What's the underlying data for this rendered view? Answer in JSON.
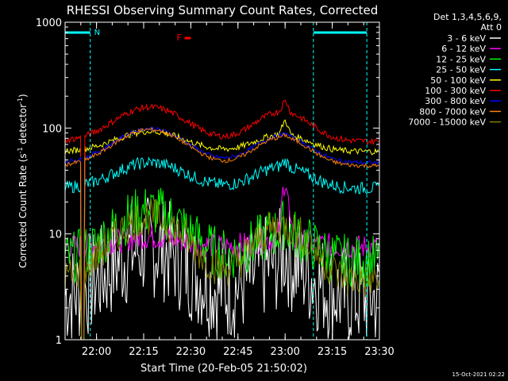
{
  "chart_data": {
    "type": "line",
    "title": "RHESSI Observing Summary Count Rates, Corrected",
    "xlabel": "Start Time (20-Feb-05 21:50:02)",
    "ylabel_main": "Corrected Count Rate (s",
    "ylabel_sup1": "-1",
    "ylabel_mid": " detector",
    "ylabel_sup2": "-1",
    "ylabel_end": ")",
    "yscale": "log",
    "ylim": [
      1,
      1000
    ],
    "xlim_min": [
      0,
      100
    ],
    "ytick_values": [
      1,
      10,
      100,
      1000
    ],
    "ytick_labels": [
      "1",
      "10",
      "100",
      "1000"
    ],
    "xtick_values": [
      10,
      25,
      40,
      55,
      70,
      85,
      100
    ],
    "xtick_labels": [
      "22:00",
      "22:15",
      "22:30",
      "22:45",
      "23:00",
      "23:15",
      "23:30"
    ],
    "legend_header": [
      "Det 1,3,4,5,6,9,",
      "Att 0"
    ],
    "legend_position": "right",
    "annotations": {
      "night_label": "N",
      "flare_label": "F"
    },
    "night_intervals": [
      [
        -8,
        8
      ],
      [
        79,
        96
      ]
    ],
    "dashed_time_lines": [
      8,
      79,
      96
    ],
    "flare_interval": [
      38,
      40
    ],
    "timestamp": "15-Oct-2021 02:22",
    "series": [
      {
        "name": "3 - 6 keV",
        "color": "#ffffff",
        "base": 2.5,
        "bump1": 2.0,
        "bump2": 1.2,
        "spike": 0.6,
        "noise": 0.5
      },
      {
        "name": "6 - 12 keV",
        "color": "#ff00ff",
        "base": 7.5,
        "bump1": 0.25,
        "bump2": 0.2,
        "spike": 3.0,
        "noise": 0.12
      },
      {
        "name": "12 - 25 keV",
        "color": "#00ff00",
        "base": 5.5,
        "bump1": 2.0,
        "bump2": 0.9,
        "spike": 0.4,
        "noise": 0.25
      },
      {
        "name": "25 - 50 keV",
        "color": "#00ffff",
        "base": 27,
        "bump1": 0.75,
        "bump2": 0.6,
        "spike": 0.2,
        "noise": 0.06
      },
      {
        "name": "50 - 100 keV",
        "color": "#ffff00",
        "base": 60,
        "bump1": 0.55,
        "bump2": 0.45,
        "spike": 0.5,
        "noise": 0.03
      },
      {
        "name": "100 - 300 keV",
        "color": "#ff0000",
        "base": 75,
        "bump1": 1.1,
        "bump2": 0.9,
        "spike": 0.5,
        "noise": 0.03
      },
      {
        "name": "300 - 800 keV",
        "color": "#0000ff",
        "base": 47,
        "bump1": 1.1,
        "bump2": 0.8,
        "spike": 0.1,
        "noise": 0.02
      },
      {
        "name": "800 - 7000 keV",
        "color": "#ff8000",
        "base": 44,
        "bump1": 1.2,
        "bump2": 0.85,
        "spike": 0.1,
        "noise": 0.02
      },
      {
        "name": "7000 - 15000 keV",
        "color": "#808000",
        "base": 3.6,
        "bump1": 3.0,
        "bump2": 2.3,
        "spike": 0.0,
        "noise": 0.18
      }
    ]
  }
}
